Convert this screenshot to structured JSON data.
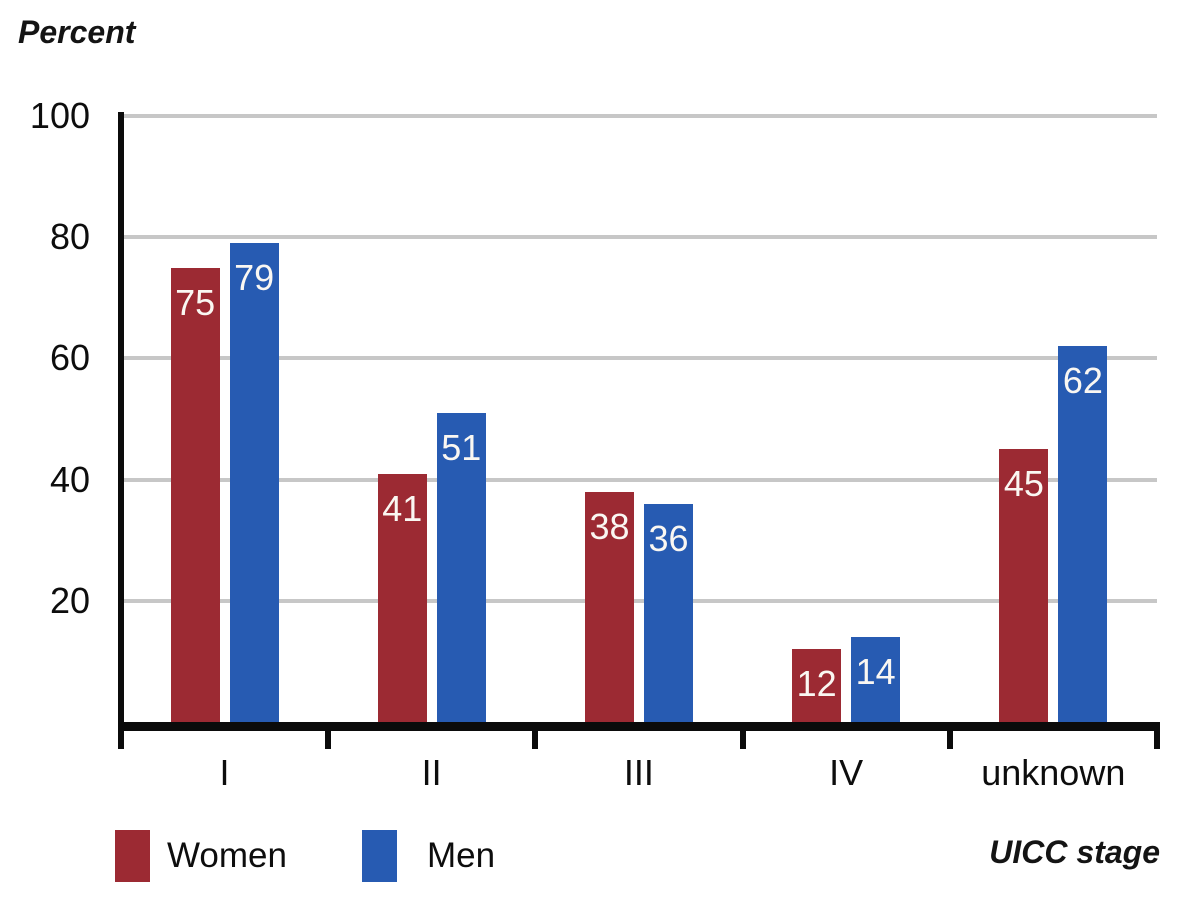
{
  "chart_data": {
    "type": "bar",
    "categories": [
      "I",
      "II",
      "III",
      "IV",
      "unknown"
    ],
    "series": [
      {
        "name": "Women",
        "color": "#9c2a33",
        "values": [
          75,
          41,
          38,
          12,
          45
        ]
      },
      {
        "name": "Men",
        "color": "#275bb2",
        "values": [
          79,
          51,
          36,
          14,
          62
        ]
      }
    ],
    "title": "",
    "ylabel": "Percent",
    "xlabel": "UICC stage",
    "ylim": [
      0,
      100
    ],
    "yticks": [
      20,
      40,
      60,
      80,
      100
    ],
    "grid": true,
    "gridline_color": "#c7c7c7",
    "axis_color": "#0b0b0b",
    "value_labels": "inside-top, white",
    "legend_position": "bottom-left"
  },
  "legend": {
    "items": [
      {
        "label": "Women",
        "color": "#9c2a33"
      },
      {
        "label": "Men",
        "color": "#275bb2"
      }
    ]
  }
}
